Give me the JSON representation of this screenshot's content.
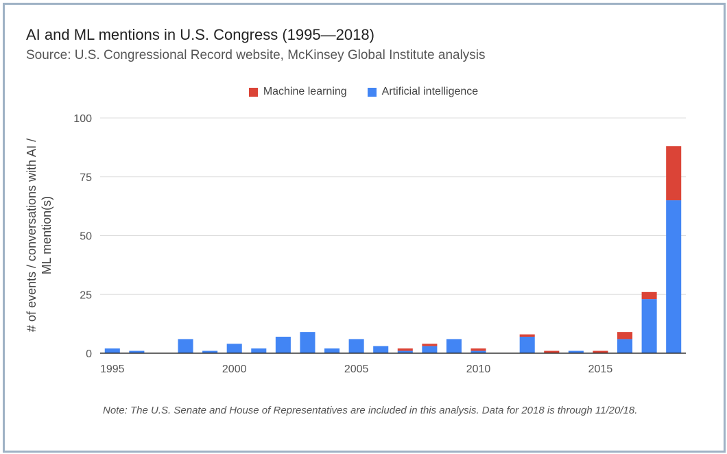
{
  "chart_data": {
    "type": "bar",
    "stacked": true,
    "title": "AI and ML mentions in U.S. Congress (1995—2018)",
    "subtitle": "Source: U.S. Congressional Record website, McKinsey Global Institute analysis",
    "ylabel_lines": [
      "# of events / conversations with AI /",
      "ML mention(s)"
    ],
    "xlabel": "",
    "ylim": [
      0,
      100
    ],
    "yticks": [
      0,
      25,
      50,
      75,
      100
    ],
    "xticks": [
      1995,
      2000,
      2005,
      2010,
      2015
    ],
    "grid": true,
    "legend_position": "top-center",
    "categories": [
      1995,
      1996,
      1997,
      1998,
      1999,
      2000,
      2001,
      2002,
      2003,
      2004,
      2005,
      2006,
      2007,
      2008,
      2009,
      2010,
      2011,
      2012,
      2013,
      2014,
      2015,
      2016,
      2017,
      2018
    ],
    "series": [
      {
        "name": "Artificial intelligence",
        "color": "#4285f4",
        "values": [
          2,
          1,
          0,
          6,
          1,
          4,
          2,
          7,
          9,
          2,
          6,
          3,
          1,
          3,
          6,
          1,
          0,
          7,
          0,
          1,
          0,
          6,
          23,
          65
        ]
      },
      {
        "name": "Machine learning",
        "color": "#db4437",
        "values": [
          0,
          0,
          0,
          0,
          0,
          0,
          0,
          0,
          0,
          0,
          0,
          0,
          1,
          1,
          0,
          1,
          0,
          1,
          1,
          0,
          1,
          3,
          3,
          23
        ]
      }
    ],
    "legend_order": [
      "Machine learning",
      "Artificial intelligence"
    ]
  },
  "note": "Note: The U.S. Senate and House of Representatives are included in this analysis. Data for 2018 is through 11/20/18.",
  "colors": {
    "grid": "#dddddd",
    "axis": "#333333",
    "frame": "#9fb2c5"
  }
}
